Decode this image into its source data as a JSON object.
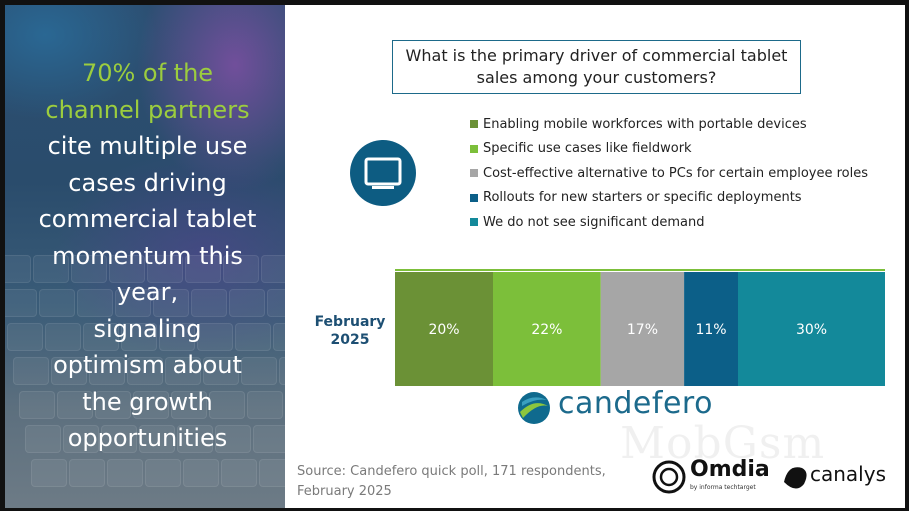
{
  "headline": {
    "highlight": "70% of the channel partners",
    "rest": "cite multiple use cases driving commercial tablet momentum this year, signaling optimism about the growth opportunities"
  },
  "question": "What is the primary driver of commercial tablet sales among your customers?",
  "icons": {
    "device": "tablet-monitor-icon"
  },
  "chart_data": {
    "type": "bar",
    "orientation": "horizontal-stacked-100",
    "categories": [
      "February 2025"
    ],
    "series": [
      {
        "name": "Enabling mobile workforces with portable devices",
        "values": [
          20
        ],
        "label": "20%",
        "color": "#6b9136"
      },
      {
        "name": "Specific use cases like fieldwork",
        "values": [
          22
        ],
        "label": "22%",
        "color": "#7cbf3a"
      },
      {
        "name": "Cost-effective alternative to PCs for certain employee roles",
        "values": [
          17
        ],
        "label": "17%",
        "color": "#a6a6a6"
      },
      {
        "name": "Rollouts for new starters or specific deployments",
        "values": [
          11
        ],
        "label": "11%",
        "color": "#0c5f88"
      },
      {
        "name": "We do not see significant demand",
        "values": [
          30
        ],
        "label": "30%",
        "color": "#13899a"
      }
    ],
    "legend_position": "top",
    "xlim": [
      0,
      100
    ],
    "grid": false
  },
  "row_label": {
    "line1": "February",
    "line2": "2025"
  },
  "source": "Source: Candefero quick poll, 171 respondents, February 2025",
  "logos": {
    "candefero": "candefero",
    "omdia": "Omdia",
    "omdia_sub": "by informa techtarget",
    "canalys": "canalys"
  },
  "watermark": "MobGsm"
}
